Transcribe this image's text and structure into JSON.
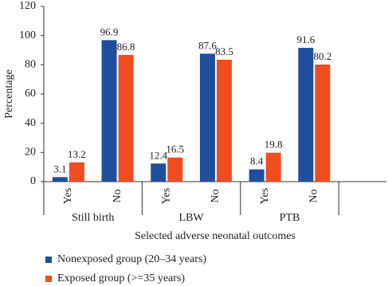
{
  "chart_data": {
    "type": "bar",
    "y_label": "Percentage",
    "x_label": "Selected adverse neonatal outcomes",
    "categories": [
      "Yes",
      "No",
      "Yes",
      "No",
      "Yes",
      "No"
    ],
    "groups": [
      "Still birth",
      "LBW",
      "PTB"
    ],
    "series": [
      {
        "name": "Nonexposed group (20–34 years)",
        "color": "#1f4e9c",
        "values": [
          3.1,
          96.9,
          12.4,
          87.6,
          8.4,
          91.6
        ]
      },
      {
        "name": "Exposed group (>=35 years)",
        "color": "#f04e1e",
        "values": [
          13.2,
          86.8,
          16.5,
          83.5,
          19.8,
          80.2
        ]
      }
    ],
    "ylim": [
      0,
      120
    ],
    "yticks": [
      0,
      20,
      40,
      60,
      80,
      100,
      120
    ],
    "grid": false
  }
}
